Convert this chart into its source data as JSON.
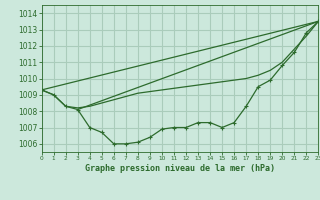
{
  "title": "Graphe pression niveau de la mer (hPa)",
  "background_color": "#cce8dc",
  "grid_color": "#aaccbb",
  "line_color": "#2d6b2d",
  "xlim": [
    0,
    23
  ],
  "ylim": [
    1005.5,
    1014.5
  ],
  "yticks": [
    1006,
    1007,
    1008,
    1009,
    1010,
    1011,
    1012,
    1013,
    1014
  ],
  "xticks": [
    0,
    1,
    2,
    3,
    4,
    5,
    6,
    7,
    8,
    9,
    10,
    11,
    12,
    13,
    14,
    15,
    16,
    17,
    18,
    19,
    20,
    21,
    22,
    23
  ],
  "series_main": [
    1009.3,
    1009.0,
    1008.3,
    1008.1,
    1007.0,
    1006.7,
    1006.0,
    1006.0,
    1006.1,
    1006.4,
    1006.9,
    1007.0,
    1007.0,
    1007.3,
    1007.3,
    1007.0,
    1007.3,
    1008.3,
    1009.5,
    1009.9,
    1010.8,
    1011.6,
    1012.8,
    1013.5
  ],
  "series_smooth": [
    1009.3,
    1009.0,
    1008.3,
    1008.2,
    1008.3,
    1008.5,
    1008.7,
    1008.9,
    1009.1,
    1009.2,
    1009.3,
    1009.4,
    1009.5,
    1009.6,
    1009.7,
    1009.8,
    1009.9,
    1010.0,
    1010.2,
    1010.5,
    1011.0,
    1011.8,
    1012.6,
    1013.5
  ],
  "series_line": [
    [
      0,
      1009.3
    ],
    [
      23,
      1013.5
    ]
  ],
  "series_line2": [
    [
      3,
      1008.1
    ],
    [
      23,
      1013.5
    ]
  ]
}
